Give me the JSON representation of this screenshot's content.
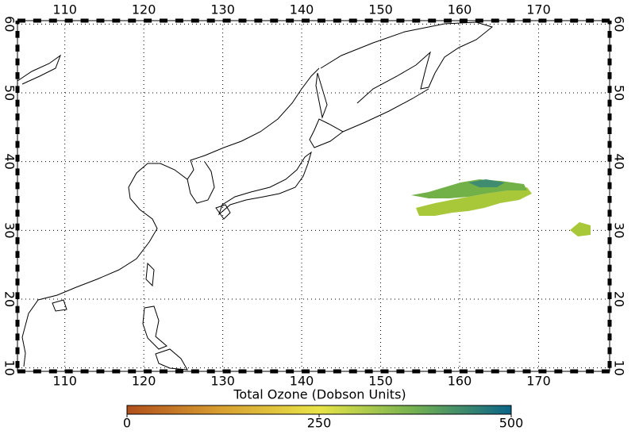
{
  "map": {
    "lonlim": [
      104,
      179
    ],
    "latlim": [
      9.5,
      60.5
    ],
    "lonticks": [
      110,
      120,
      130,
      140,
      150,
      160,
      170
    ],
    "latticks": [
      10,
      20,
      30,
      40,
      50,
      60
    ],
    "grid": true
  },
  "colorbar": {
    "title": "Total Ozone (Dobson Units)",
    "range": [
      0,
      500
    ],
    "ticks": [
      0,
      250,
      500
    ]
  }
}
